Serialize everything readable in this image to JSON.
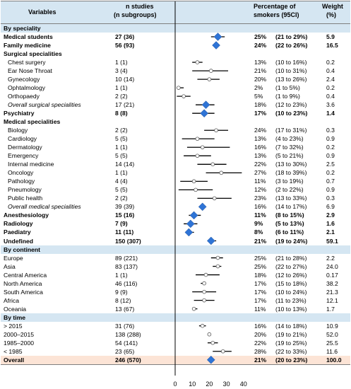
{
  "header": {
    "variables": "Variables",
    "n_studies_line1": "n studies",
    "n_studies_line2": "(n subgroups)",
    "percentage_line1": "Percentage of",
    "percentage_line2": "smokers (95CI)",
    "weight_line1": "Weight",
    "weight_line2": "(%)"
  },
  "colors": {
    "header_bg": "#d5e6f2",
    "total_bg": "#fce4d6",
    "diamond": "#2e74d6",
    "line": "#000000"
  },
  "chart_data": {
    "type": "forest",
    "title": "",
    "xlabel": "",
    "xlim": [
      0,
      40
    ],
    "xticks": [
      "0",
      "10",
      "20",
      "30",
      "40"
    ],
    "rows": [
      {
        "label": "By speciality",
        "kind": "section"
      },
      {
        "label": "Medical students",
        "n": "27 (36)",
        "pct": "25%",
        "ci": "(21 to 29%)",
        "weight": "5.9",
        "est": 25,
        "lo": 21,
        "hi": 29,
        "kind": "diamond",
        "bold": true
      },
      {
        "label": "Family medicine",
        "n": "56 (93)",
        "pct": "24%",
        "ci": "(22 to 26%)",
        "weight": "16.5",
        "est": 24,
        "lo": 22,
        "hi": 26,
        "kind": "diamond",
        "bold": true
      },
      {
        "label": "Surgical specialities",
        "kind": "subhead",
        "bold": true
      },
      {
        "label": "Chest surgery",
        "n": "1 (1)",
        "pct": "13%",
        "ci": "(10 to 16%)",
        "weight": "0.2",
        "est": 13,
        "lo": 10,
        "hi": 16,
        "kind": "circle",
        "indent": true
      },
      {
        "label": "Ear Nose Throat",
        "n": "3 (4)",
        "pct": "21%",
        "ci": "(10 to 31%)",
        "weight": "0.4",
        "est": 21,
        "lo": 10,
        "hi": 31,
        "kind": "circle",
        "indent": true
      },
      {
        "label": "Gynecology",
        "n": "10 (14)",
        "pct": "20%",
        "ci": "(13 to 26%)",
        "weight": "2.4",
        "est": 20,
        "lo": 13,
        "hi": 26,
        "kind": "circle",
        "indent": true
      },
      {
        "label": "Ophtalmology",
        "n": "1 (1)",
        "pct": "2%",
        "ci": "(1 to 5%)",
        "weight": "0.2",
        "est": 2,
        "lo": 1,
        "hi": 5,
        "kind": "circle",
        "indent": true
      },
      {
        "label": "Orthopaedy",
        "n": "2 (2)",
        "pct": "5%",
        "ci": "(1 to 9%)",
        "weight": "0.4",
        "est": 5,
        "lo": 1,
        "hi": 9,
        "kind": "circle",
        "indent": true
      },
      {
        "label": "Overall surgical specialities",
        "n": "17 (21)",
        "pct": "18%",
        "ci": "(12 to 23%)",
        "weight": "3.6",
        "est": 18,
        "lo": 12,
        "hi": 23,
        "kind": "diamond",
        "indent": true,
        "italic": true
      },
      {
        "label": "Psychiatry",
        "n": "8 (8)",
        "pct": "17%",
        "ci": "(10 to 23%)",
        "weight": "1.4",
        "est": 17,
        "lo": 10,
        "hi": 23,
        "kind": "diamond",
        "bold": true
      },
      {
        "label": "Medical specialities",
        "kind": "subhead",
        "bold": true
      },
      {
        "label": "Biology",
        "n": "2 (2)",
        "pct": "24%",
        "ci": "(17 to 31%)",
        "weight": "0.3",
        "est": 24,
        "lo": 17,
        "hi": 31,
        "kind": "circle",
        "indent": true
      },
      {
        "label": "Cardiology",
        "n": "5 (5)",
        "pct": "13%",
        "ci": "(4 to 23%)",
        "weight": "0.9",
        "est": 13,
        "lo": 4,
        "hi": 23,
        "kind": "circle",
        "indent": true
      },
      {
        "label": "Dermatology",
        "n": "1 (1)",
        "pct": "16%",
        "ci": "(7 to 32%)",
        "weight": "0.2",
        "est": 16,
        "lo": 7,
        "hi": 32,
        "kind": "circle",
        "indent": true
      },
      {
        "label": "Emergency",
        "n": "5 (5)",
        "pct": "13%",
        "ci": "(5 to 21%)",
        "weight": "0.9",
        "est": 13,
        "lo": 5,
        "hi": 21,
        "kind": "circle",
        "indent": true
      },
      {
        "label": "Internal medicine",
        "n": "14 (14)",
        "pct": "22%",
        "ci": "(13 to 30%)",
        "weight": "2.5",
        "est": 22,
        "lo": 13,
        "hi": 30,
        "kind": "circle",
        "indent": true
      },
      {
        "label": "Oncology",
        "n": "1 (1)",
        "pct": "27%",
        "ci": "(18 to 39%)",
        "weight": "0.2",
        "est": 27,
        "lo": 18,
        "hi": 39,
        "kind": "circle",
        "indent": true
      },
      {
        "label": "Pathology",
        "n": "4 (4)",
        "pct": "11%",
        "ci": "(3 to 19%)",
        "weight": "0.7",
        "est": 11,
        "lo": 3,
        "hi": 19,
        "kind": "circle",
        "indent": true
      },
      {
        "label": "Pneumology",
        "n": "5 (5)",
        "pct": "12%",
        "ci": "(2 to 22%)",
        "weight": "0.9",
        "est": 12,
        "lo": 2,
        "hi": 22,
        "kind": "circle",
        "indent": true
      },
      {
        "label": "Public health",
        "n": "2 (2)",
        "pct": "23%",
        "ci": "(13 to 33%)",
        "weight": "0.3",
        "est": 23,
        "lo": 13,
        "hi": 33,
        "kind": "circle",
        "indent": true
      },
      {
        "label": "Overall medical specialities",
        "n": "39 (39)",
        "pct": "16%",
        "ci": "(14 to 17%)",
        "weight": "6.9",
        "est": 16,
        "lo": 14,
        "hi": 17,
        "kind": "diamond",
        "indent": true,
        "italic": true
      },
      {
        "label": "Anesthesiology",
        "n": "15 (16)",
        "pct": "11%",
        "ci": "(8 to 15%)",
        "weight": "2.9",
        "est": 11,
        "lo": 8,
        "hi": 15,
        "kind": "diamond",
        "bold": true
      },
      {
        "label": "Radiology",
        "n": "7 (9)",
        "pct": "9%",
        "ci": "(5 to 13%)",
        "weight": "1.6",
        "est": 9,
        "lo": 5,
        "hi": 13,
        "kind": "diamond",
        "bold": true
      },
      {
        "label": "Paediatry",
        "n": "11 (11)",
        "pct": "8%",
        "ci": "(6 to 11%)",
        "weight": "2.1",
        "est": 8,
        "lo": 6,
        "hi": 11,
        "kind": "diamond",
        "bold": true
      },
      {
        "label": "Undefined",
        "n": "150 (307)",
        "pct": "21%",
        "ci": "(19 to 24%)",
        "weight": "59.1",
        "est": 21,
        "lo": 19,
        "hi": 24,
        "kind": "diamond",
        "bold": true
      },
      {
        "label": "By continent",
        "kind": "section"
      },
      {
        "label": "Europe",
        "n": "89 (221)",
        "pct": "25%",
        "ci": "(21 to 28%)",
        "weight": "2.2",
        "est": 25,
        "lo": 21,
        "hi": 28,
        "kind": "circle"
      },
      {
        "label": "Asia",
        "n": "83 (137)",
        "pct": "25%",
        "ci": "(22 to 27%)",
        "weight": "24.0",
        "est": 25,
        "lo": 22,
        "hi": 27,
        "kind": "circle"
      },
      {
        "label": "Central America",
        "n": "1 (1)",
        "pct": "18%",
        "ci": "(12 to 26%)",
        "weight": "0.17",
        "est": 18,
        "lo": 12,
        "hi": 26,
        "kind": "circle"
      },
      {
        "label": " North America",
        "n": "46 (116)",
        "pct": "17%",
        "ci": "(15 to 18%)",
        "weight": "38.2",
        "est": 17,
        "lo": 15,
        "hi": 18,
        "kind": "circle"
      },
      {
        "label": "South America",
        "n": "9 (9)",
        "pct": "17%",
        "ci": "(10 to 24%)",
        "weight": "21.3",
        "est": 17,
        "lo": 10,
        "hi": 24,
        "kind": "circle"
      },
      {
        "label": "Africa",
        "n": "8 (12)",
        "pct": "17%",
        "ci": "(11 to 23%)",
        "weight": "12.1",
        "est": 17,
        "lo": 11,
        "hi": 23,
        "kind": "circle"
      },
      {
        "label": "Oceania",
        "n": "13 (67)",
        "pct": "11%",
        "ci": "(10 to 13%)",
        "weight": "1.7",
        "est": 11,
        "lo": 10,
        "hi": 13,
        "kind": "circle"
      },
      {
        "label": "By time",
        "kind": "section"
      },
      {
        "label": "> 2015",
        "n": "31 (76)",
        "pct": "16%",
        "ci": "(14 to 18%)",
        "weight": "10.9",
        "est": 16,
        "lo": 14,
        "hi": 18,
        "kind": "circle"
      },
      {
        "label": "2000–2015",
        "n": "138 (288)",
        "pct": "20%",
        "ci": "(19 to 21%)",
        "weight": "52.0",
        "est": 20,
        "lo": 19,
        "hi": 21,
        "kind": "circle"
      },
      {
        "label": "1985–2000",
        "n": "54 (141)",
        "pct": "22%",
        "ci": "(19 to 25%)",
        "weight": "25.5",
        "est": 22,
        "lo": 19,
        "hi": 25,
        "kind": "circle"
      },
      {
        "label": "< 1985",
        "n": "23 (65)",
        "pct": "28%",
        "ci": "(22 to 33%)",
        "weight": "11.6",
        "est": 28,
        "lo": 22,
        "hi": 33,
        "kind": "circle"
      },
      {
        "label": "Overall",
        "n": "246 (570)",
        "pct": "21%",
        "ci": "(20 to 23%)",
        "weight": "100.0",
        "est": 21,
        "lo": 20,
        "hi": 23,
        "kind": "diamond",
        "total": true
      }
    ]
  }
}
